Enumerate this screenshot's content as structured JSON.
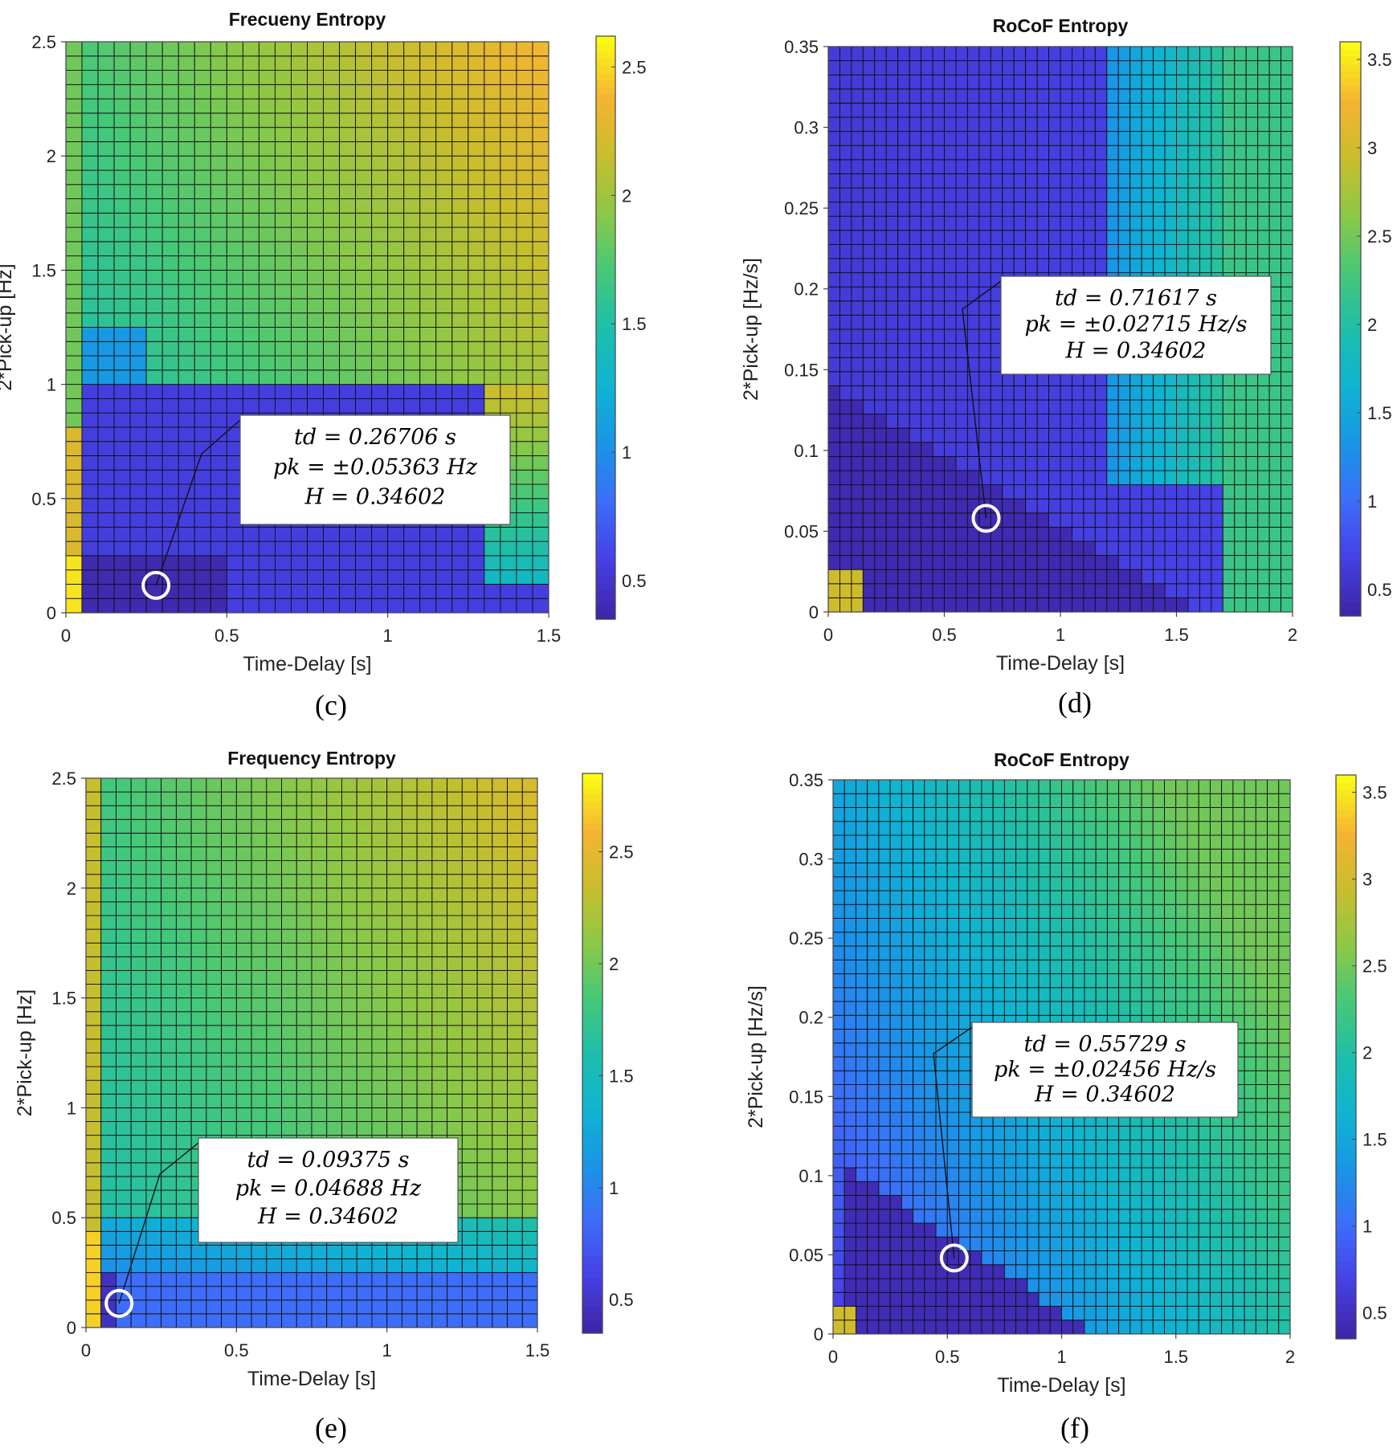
{
  "chart_data": [
    {
      "id": "c",
      "type": "heatmap",
      "title": "Frecueny Entropy",
      "caption": "(c)",
      "xlabel": "Time-Delay [s]",
      "ylabel": "2*Pick-up [Hz]",
      "xlim": [
        0,
        1.5
      ],
      "ylim": [
        0,
        2.5
      ],
      "xticks": [
        "0",
        "0.5",
        "1",
        "1.5"
      ],
      "yticks": [
        "0",
        "0.5",
        "1",
        "1.5",
        "2",
        "2.5"
      ],
      "colorbar": {
        "range": [
          0.35,
          2.62
        ],
        "ticks": [
          "0.5",
          "1",
          "1.5",
          "2",
          "2.5"
        ]
      },
      "grid_size": [
        30,
        40
      ],
      "marker": {
        "x": 0.28,
        "y": 0.12
      },
      "annotation": [
        "td = 0.26706 s",
        "pk = ±0.05363 Hz",
        "H = 0.34602"
      ]
    },
    {
      "id": "d",
      "type": "heatmap",
      "title": "RoCoF Entropy",
      "caption": "(d)",
      "xlabel": "Time-Delay [s]",
      "ylabel": "2*Pick-up [Hz/s]",
      "xlim": [
        0,
        2
      ],
      "ylim": [
        0,
        0.35
      ],
      "xticks": [
        "0",
        "0.5",
        "1",
        "1.5",
        "2"
      ],
      "yticks": [
        "0",
        "0.05",
        "0.1",
        "0.15",
        "0.2",
        "0.25",
        "0.3",
        "0.35"
      ],
      "colorbar": {
        "range": [
          0.35,
          3.6
        ],
        "ticks": [
          "0.5",
          "1",
          "1.5",
          "2",
          "2.5",
          "3",
          "3.5"
        ]
      },
      "grid_size": [
        40,
        40
      ],
      "marker": {
        "x": 0.68,
        "y": 0.058
      },
      "annotation": [
        "td = 0.71617 s",
        "pk = ±0.02715 Hz/s",
        "H = 0.34602"
      ]
    },
    {
      "id": "e",
      "type": "heatmap",
      "title": "Frequency Entropy",
      "caption": "(e)",
      "xlabel": "Time-Delay [s]",
      "ylabel": "2*Pick-up [Hz]",
      "xlim": [
        0,
        1.5
      ],
      "ylim": [
        0,
        2.5
      ],
      "xticks": [
        "0",
        "0.5",
        "1",
        "1.5"
      ],
      "yticks": [
        "0",
        "0.5",
        "1",
        "1.5",
        "2",
        "2.5"
      ],
      "colorbar": {
        "range": [
          0.35,
          2.85
        ],
        "ticks": [
          "0.5",
          "1",
          "1.5",
          "2",
          "2.5"
        ]
      },
      "grid_size": [
        30,
        40
      ],
      "marker": {
        "x": 0.11,
        "y": 0.11
      },
      "annotation": [
        "td = 0.09375 s",
        "pk = 0.04688 Hz",
        "H = 0.34602"
      ]
    },
    {
      "id": "f",
      "type": "heatmap",
      "title": "RoCoF Entropy",
      "caption": "(f)",
      "xlabel": "Time-Delay [s]",
      "ylabel": "2*Pick-up [Hz/s]",
      "xlim": [
        0,
        2
      ],
      "ylim": [
        0,
        0.35
      ],
      "xticks": [
        "0",
        "0.5",
        "1",
        "1.5",
        "2"
      ],
      "yticks": [
        "0",
        "0.05",
        "0.1",
        "0.15",
        "0.2",
        "0.25",
        "0.3",
        "0.35"
      ],
      "colorbar": {
        "range": [
          0.35,
          3.6
        ],
        "ticks": [
          "0.5",
          "1",
          "1.5",
          "2",
          "2.5",
          "3",
          "3.5"
        ]
      },
      "grid_size": [
        40,
        40
      ],
      "marker": {
        "x": 0.53,
        "y": 0.048
      },
      "annotation": [
        "td = 0.55729 s",
        "pk = ±0.02456 Hz/s",
        "H = 0.34602"
      ]
    }
  ]
}
